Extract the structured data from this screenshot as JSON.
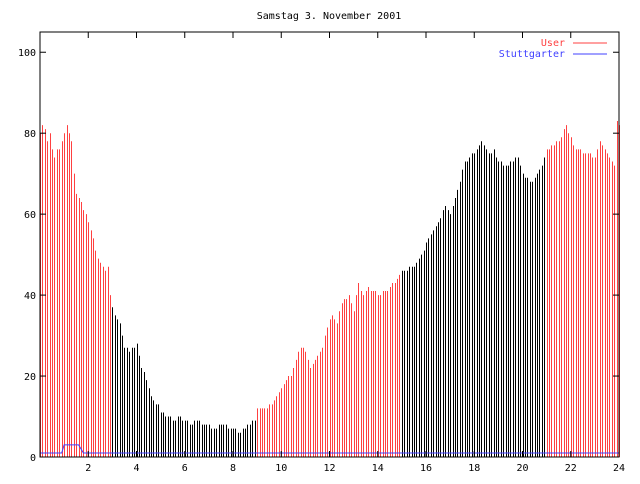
{
  "chart_data": {
    "type": "bar",
    "style": "impulses",
    "title": "Samstag 3. November 2001",
    "xlabel": "",
    "ylabel": "",
    "xlim": [
      0,
      24
    ],
    "ylim": [
      0,
      105
    ],
    "xticks": [
      "2",
      "4",
      "6",
      "8",
      "10",
      "12",
      "14",
      "16",
      "18",
      "20",
      "22",
      "24"
    ],
    "yticks": [
      "0",
      "20",
      "40",
      "60",
      "80",
      "100"
    ],
    "legend": {
      "placement": "top-right",
      "entries": [
        {
          "label": "User",
          "color": "#ff4040"
        },
        {
          "label": "Stuttgarter",
          "color": "#4040ff"
        }
      ]
    },
    "sample_step_hours": 0.1,
    "color_segments": [
      {
        "from": 0,
        "to": 3,
        "color": "#ff4040"
      },
      {
        "from": 3,
        "to": 9,
        "color": "#000000"
      },
      {
        "from": 9,
        "to": 15,
        "color": "#ff4040"
      },
      {
        "from": 15,
        "to": 21,
        "color": "#000000"
      },
      {
        "from": 21,
        "to": 24,
        "color": "#ff4040"
      }
    ],
    "series": [
      {
        "name": "User",
        "x": [
          0,
          0.1,
          0.2,
          0.3,
          0.4,
          0.5,
          0.6,
          0.7,
          0.8,
          0.9,
          1.0,
          1.1,
          1.2,
          1.3,
          1.45,
          1.6,
          1.9,
          2.0,
          2.2,
          2.3,
          2.5,
          2.7,
          2.8,
          2.9,
          3.0,
          3.1,
          3.3,
          3.5,
          3.7,
          3.9,
          4.0,
          4.2,
          4.4,
          4.5,
          4.7,
          4.9,
          5.0,
          5.3,
          5.6,
          5.8,
          6.0,
          6.3,
          6.5,
          6.8,
          7.2,
          7.6,
          8.0,
          8.2,
          8.5,
          8.7,
          8.9,
          9.0,
          9.3,
          9.6,
          9.8,
          10.0,
          10.2,
          10.4,
          10.6,
          10.8,
          11.0,
          11.2,
          11.5,
          11.7,
          11.9,
          12.1,
          12.3,
          12.5,
          12.8,
          13.0,
          13.2,
          13.4,
          13.6,
          14.0,
          14.4,
          14.8,
          15.0,
          15.5,
          15.8,
          16.2,
          16.5,
          16.8,
          17.0,
          17.3,
          17.6,
          18.0,
          18.3,
          18.6,
          18.8,
          19.0,
          19.4,
          19.8,
          20.0,
          20.4,
          20.6,
          20.8,
          21.0,
          21.5,
          21.8,
          22.2,
          22.6,
          23.0,
          23.2,
          23.5,
          23.8,
          23.9,
          24.0
        ],
        "y": [
          80,
          82,
          81,
          78,
          80,
          76,
          74,
          76,
          76,
          78,
          80,
          82,
          80,
          78,
          66,
          64,
          60,
          58,
          54,
          51,
          48,
          46,
          47,
          40,
          37,
          35,
          33,
          27,
          26,
          27,
          28,
          22,
          19,
          17,
          14,
          13,
          11,
          10,
          9,
          10,
          9,
          8,
          9,
          8,
          7,
          8,
          7,
          6,
          7,
          8,
          9,
          12,
          12,
          13,
          15,
          17,
          19,
          20,
          24,
          27,
          26,
          22,
          25,
          27,
          32,
          35,
          33,
          38,
          40,
          36,
          43,
          40,
          42,
          40,
          41,
          44,
          46,
          47,
          50,
          55,
          58,
          62,
          60,
          66,
          73,
          75,
          78,
          75,
          76,
          73,
          72,
          74,
          70,
          68,
          70,
          72,
          76,
          78,
          82,
          76,
          75,
          74,
          78,
          75,
          72,
          83,
          82
        ]
      },
      {
        "name": "Stuttgarter",
        "x": [
          0,
          0.9,
          1.0,
          1.6,
          1.8,
          24
        ],
        "y": [
          1,
          1,
          3,
          3,
          1,
          1
        ]
      }
    ]
  }
}
